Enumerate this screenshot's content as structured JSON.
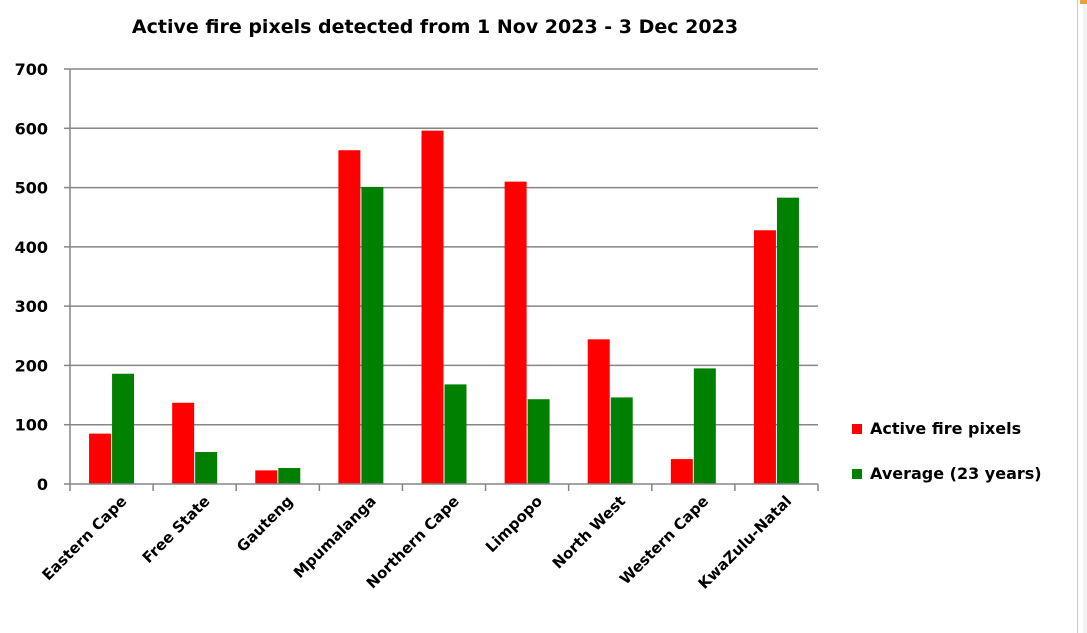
{
  "chart_data": {
    "type": "bar",
    "title": "Active fire pixels detected from 1 Nov 2023 - 3 Dec 2023",
    "xlabel": "",
    "ylabel": "",
    "ylim": [
      0,
      700
    ],
    "yticks": [
      0,
      100,
      200,
      300,
      400,
      500,
      600,
      700
    ],
    "grid": true,
    "legend_position": "right",
    "categories": [
      "Eastern Cape",
      "Free State",
      "Gauteng",
      "Mpumalanga",
      "Northern Cape",
      "Limpopo",
      "North West",
      "Western Cape",
      "KwaZulu-Natal"
    ],
    "series": [
      {
        "name": "Active fire pixels",
        "color": "#ff0000",
        "values": [
          85,
          137,
          23,
          563,
          596,
          510,
          244,
          42,
          428
        ]
      },
      {
        "name": "Average (23 years)",
        "color": "#008000",
        "values": [
          186,
          54,
          27,
          501,
          168,
          143,
          146,
          195,
          483
        ]
      }
    ]
  }
}
